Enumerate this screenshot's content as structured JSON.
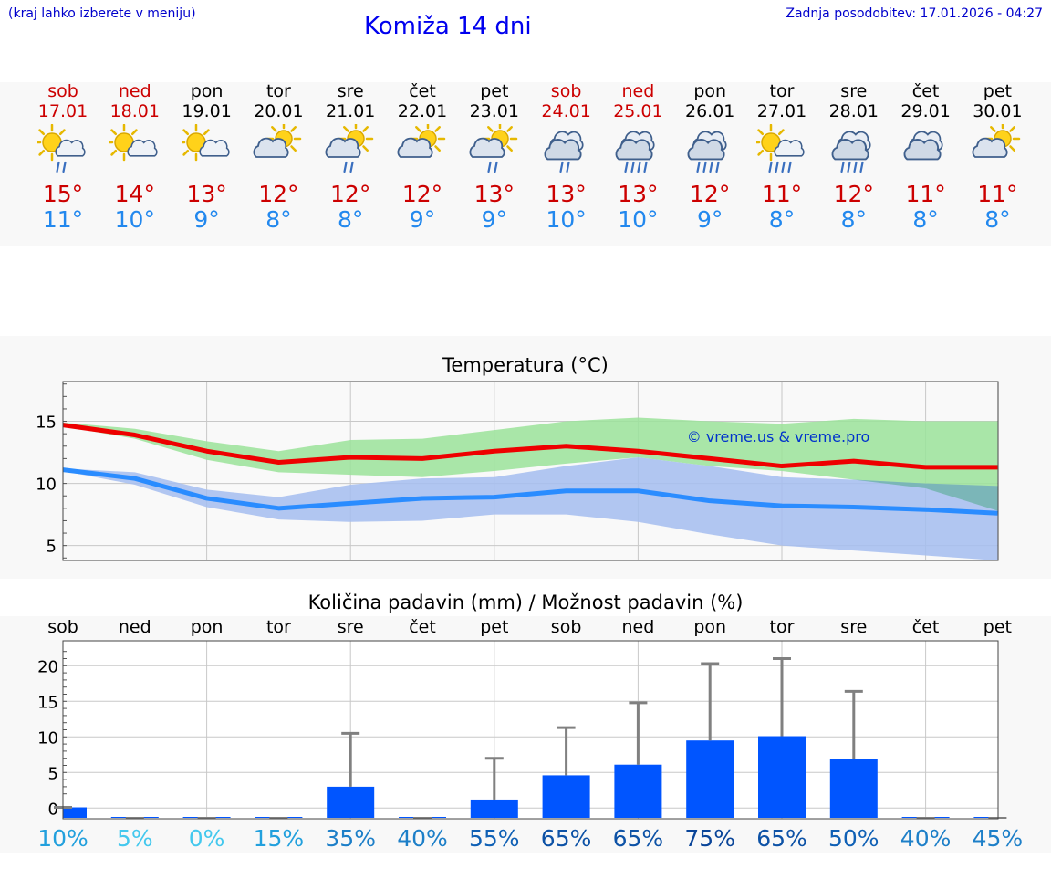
{
  "header": {
    "menu_hint": "(kraj lahko izberete v meniju)",
    "title": "Komiža 14 dni",
    "updated": "Zadnja posodobitev: 17.01.2026 - 04:27"
  },
  "colors": {
    "weekend": "#cc0000",
    "weekday": "#000000",
    "tmax": "#cc0000",
    "tmin": "#2288ee",
    "max_line": "#ee0000",
    "min_line": "#2a8cff",
    "max_band": "#9be39a",
    "min_band": "#a5bdf0",
    "bar": "#0055ff",
    "whisker": "#808080"
  },
  "days": [
    {
      "name": "sob",
      "date": "17.01",
      "weekend": true,
      "icon": "sun-cloud-rain-icon",
      "tmax": "15°",
      "tmin": "11°"
    },
    {
      "name": "ned",
      "date": "18.01",
      "weekend": true,
      "icon": "sun-cloud-icon",
      "tmax": "14°",
      "tmin": "10°"
    },
    {
      "name": "pon",
      "date": "19.01",
      "weekend": false,
      "icon": "sun-cloud-icon",
      "tmax": "13°",
      "tmin": "9°"
    },
    {
      "name": "tor",
      "date": "20.01",
      "weekend": false,
      "icon": "cloud-sun-icon",
      "tmax": "12°",
      "tmin": "8°"
    },
    {
      "name": "sre",
      "date": "21.01",
      "weekend": false,
      "icon": "cloud-sun-rain-icon",
      "tmax": "12°",
      "tmin": "8°"
    },
    {
      "name": "čet",
      "date": "22.01",
      "weekend": false,
      "icon": "cloud-sun-icon",
      "tmax": "12°",
      "tmin": "9°"
    },
    {
      "name": "pet",
      "date": "23.01",
      "weekend": false,
      "icon": "cloud-sun-rain-icon",
      "tmax": "13°",
      "tmin": "9°"
    },
    {
      "name": "sob",
      "date": "24.01",
      "weekend": true,
      "icon": "cloud-rain-icon",
      "tmax": "13°",
      "tmin": "10°"
    },
    {
      "name": "ned",
      "date": "25.01",
      "weekend": true,
      "icon": "cloud-heavy-rain-icon",
      "tmax": "13°",
      "tmin": "10°"
    },
    {
      "name": "pon",
      "date": "26.01",
      "weekend": false,
      "icon": "cloud-heavy-rain-icon",
      "tmax": "12°",
      "tmin": "9°"
    },
    {
      "name": "tor",
      "date": "27.01",
      "weekend": false,
      "icon": "sun-cloud-heavy-rain-icon",
      "tmax": "11°",
      "tmin": "8°"
    },
    {
      "name": "sre",
      "date": "28.01",
      "weekend": false,
      "icon": "cloud-heavy-rain-icon",
      "tmax": "12°",
      "tmin": "8°"
    },
    {
      "name": "čet",
      "date": "29.01",
      "weekend": false,
      "icon": "cloud-icon",
      "tmax": "11°",
      "tmin": "8°"
    },
    {
      "name": "pet",
      "date": "30.01",
      "weekend": false,
      "icon": "cloud-sun-icon",
      "tmax": "11°",
      "tmin": "8°"
    }
  ],
  "chart_data": [
    {
      "type": "line",
      "title": "Temperatura (°C)",
      "xlabel": "",
      "ylabel": "°C",
      "x": [
        "17.01",
        "18.01",
        "19.01",
        "20.01",
        "21.01",
        "22.01",
        "23.01",
        "24.01",
        "25.01",
        "26.01",
        "27.01",
        "28.01",
        "29.01",
        "30.01"
      ],
      "ylim": [
        3.8,
        18.2
      ],
      "yticks": [
        "5",
        "10",
        "15"
      ],
      "watermark": "© vreme.us & vreme.pro",
      "grid": true,
      "series": [
        {
          "name": "max",
          "values": [
            14.7,
            13.9,
            12.6,
            11.7,
            12.1,
            12.0,
            12.6,
            13.0,
            12.6,
            12.0,
            11.4,
            11.8,
            11.3,
            11.3
          ]
        },
        {
          "name": "min",
          "values": [
            11.1,
            10.4,
            8.8,
            8.0,
            8.4,
            8.8,
            8.9,
            9.4,
            9.4,
            8.6,
            8.2,
            8.1,
            7.9,
            7.6
          ]
        },
        {
          "name": "max_range_high",
          "values": [
            14.9,
            14.4,
            13.4,
            12.6,
            13.5,
            13.6,
            14.3,
            15.0,
            15.3,
            15.0,
            14.8,
            15.2,
            15.0,
            15.0
          ]
        },
        {
          "name": "max_range_low",
          "values": [
            14.6,
            13.6,
            11.9,
            10.9,
            10.7,
            10.5,
            11.0,
            11.6,
            12.1,
            11.4,
            11.0,
            10.3,
            9.6,
            7.8
          ]
        },
        {
          "name": "min_range_high",
          "values": [
            11.2,
            10.9,
            9.5,
            8.9,
            9.9,
            10.4,
            10.5,
            11.4,
            12.1,
            11.4,
            10.5,
            10.3,
            10.0,
            9.8
          ]
        },
        {
          "name": "min_range_low",
          "values": [
            11.0,
            9.9,
            8.1,
            7.1,
            6.9,
            7.0,
            7.5,
            7.5,
            6.9,
            5.9,
            5.0,
            4.6,
            4.2,
            3.8
          ]
        }
      ]
    },
    {
      "type": "bar",
      "title": "Količina padavin (mm) / Možnost padavin (%)",
      "xlabel": "",
      "ylabel": "mm",
      "categories": [
        "sob",
        "ned",
        "pon",
        "tor",
        "sre",
        "čet",
        "pet",
        "sob",
        "ned",
        "pon",
        "tor",
        "sre",
        "čet",
        "pet"
      ],
      "ylim": [
        -1.5,
        23.5
      ],
      "yticks": [
        "0",
        "5",
        "10",
        "15",
        "20"
      ],
      "grid": true,
      "series": [
        {
          "name": "padavine",
          "values": [
            0.1,
            0,
            0,
            0,
            3.0,
            0,
            1.2,
            4.6,
            6.1,
            9.5,
            10.1,
            6.9,
            0,
            0
          ]
        },
        {
          "name": "maks",
          "values": [
            0.1,
            0,
            0,
            0,
            10.5,
            0,
            7.0,
            11.3,
            14.8,
            20.3,
            21.0,
            16.4,
            0,
            0
          ]
        }
      ],
      "probabilities": [
        "10%",
        "5%",
        "0%",
        "15%",
        "35%",
        "40%",
        "55%",
        "65%",
        "65%",
        "75%",
        "65%",
        "50%",
        "40%",
        "45%"
      ],
      "probability_colors": [
        "#22a0dd",
        "#44c8ee",
        "#44c8ee",
        "#22a0dd",
        "#1d7fc8",
        "#1d7fc8",
        "#0f60b5",
        "#0d52a6",
        "#0d52a6",
        "#0a4599",
        "#0d52a6",
        "#0f60b5",
        "#1d7fc8",
        "#1d7fc8"
      ]
    }
  ]
}
